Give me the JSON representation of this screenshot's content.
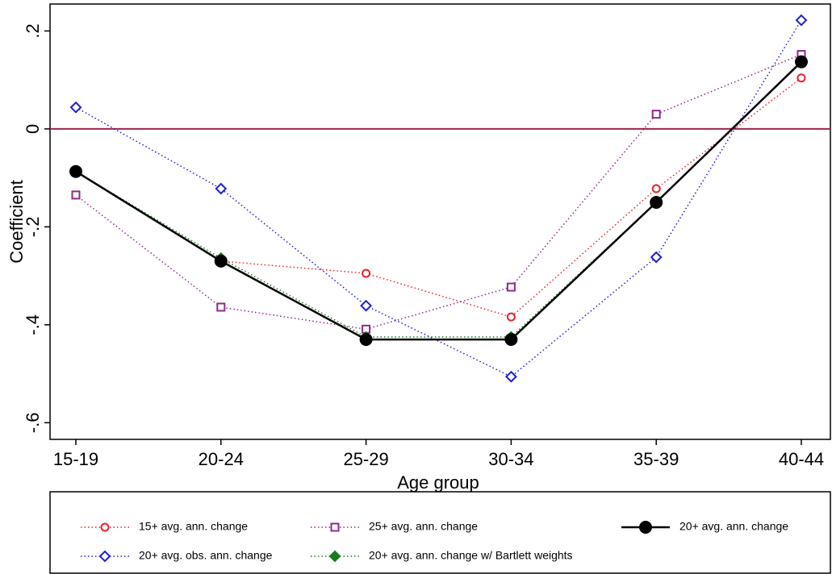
{
  "chart_data": {
    "type": "line",
    "x_label": "Age group",
    "y_label": "Coefficient",
    "categories": [
      "15-19",
      "20-24",
      "25-29",
      "30-34",
      "35-39",
      "40-44"
    ],
    "ylim": [
      -0.634,
      0.255
    ],
    "yticks": [
      {
        "value": -0.6,
        "label": "-.6"
      },
      {
        "value": -0.4,
        "label": "-.4"
      },
      {
        "value": -0.2,
        "label": "-.2"
      },
      0,
      {
        "value": 0.2,
        "label": ".2"
      }
    ],
    "reference_line": 0,
    "reference_color": "#a0224a",
    "series": [
      {
        "name": "15+ avg. ann. change",
        "color": "#e8202a",
        "marker": "circle",
        "dash": "dotted",
        "values": [
          -0.087,
          -0.27,
          -0.295,
          -0.384,
          -0.122,
          0.104
        ]
      },
      {
        "name": "25+ avg. ann. change",
        "color": "#8e2a8c",
        "marker": "square",
        "dash": "dotted",
        "values": [
          -0.135,
          -0.364,
          -0.409,
          -0.323,
          0.03,
          0.152
        ]
      },
      {
        "name": "20+ avg. obs. ann. change",
        "color": "#1f1fd6",
        "marker": "diamond",
        "dash": "dotted",
        "values": [
          0.044,
          -0.122,
          -0.361,
          -0.506,
          -0.262,
          0.222
        ]
      },
      {
        "name": "20+ avg. ann. change w/ Bartlett weights",
        "color": "#1a7a1a",
        "marker": "filled-diamond",
        "dash": "dotted",
        "values": [
          -0.087,
          -0.264,
          -0.425,
          -0.425,
          -0.15,
          0.137
        ]
      },
      {
        "name": "20+ avg. ann. change",
        "color": "#000000",
        "marker": "filled-circle",
        "dash": "solid",
        "values": [
          -0.087,
          -0.27,
          -0.43,
          -0.43,
          -0.15,
          0.137
        ]
      }
    ]
  }
}
